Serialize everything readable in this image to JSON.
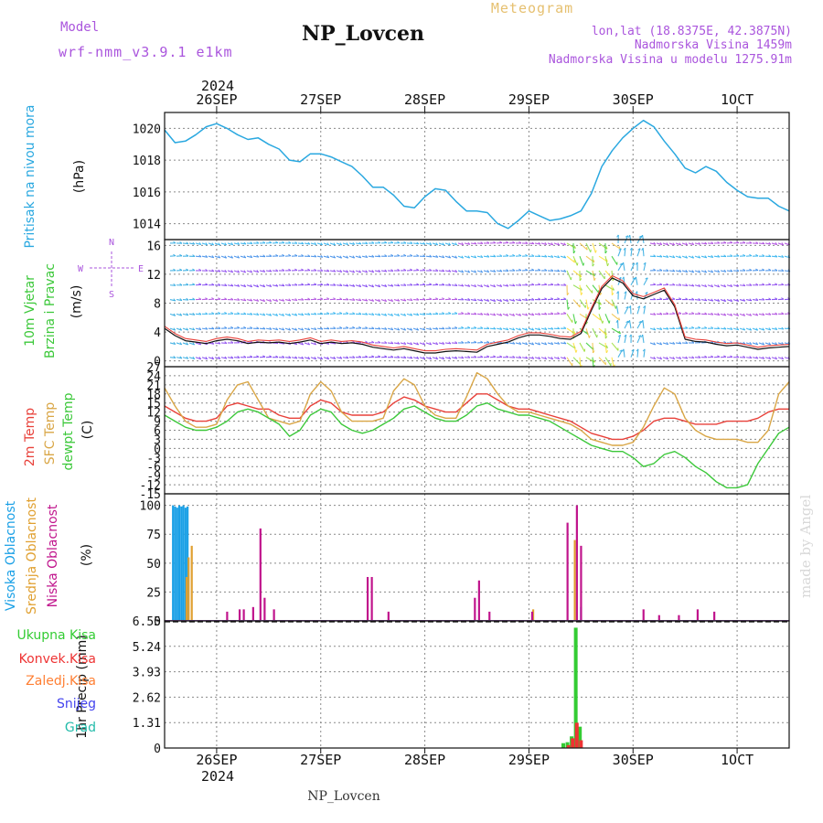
{
  "header": {
    "model_label": "Model",
    "model_name": "wrf-nmm_v3.9.1 e1km",
    "title": "NP_Lovcen",
    "chart_kind": "Meteogram",
    "coords": "lon,lat (18.8375E, 42.3875N)",
    "elevation": "Nadmorska Visina 1459m",
    "model_elevation": "Nadmorska Visina u modelu 1275.91m",
    "footer_title": "NP_Lovcen",
    "watermark": "made by Angel"
  },
  "colors": {
    "pressure": "#2aa8e0",
    "temp2m": "#e8413a",
    "sfc_temp": "#d9a646",
    "dewpt": "#3cc83a",
    "cloud_high": "#1aa0e6",
    "cloud_mid": "#e0a030",
    "cloud_low": "#c0148c",
    "purple": "#aa55dd",
    "precip_total": "#33cc33",
    "precip_conv": "#ee3333",
    "precip_frozen": "#ff7f33",
    "snow": "#4444ee",
    "hail": "#22bbaa"
  },
  "chart_data": [
    {
      "id": "pressure",
      "type": "line",
      "ylabel_lines": [
        "Pritisak na nivou mora"
      ],
      "unit": "(hPa)",
      "ylim": [
        1013,
        1021
      ],
      "yticks": [
        1014,
        1016,
        1018,
        1020
      ],
      "x_start": 25.5,
      "x_end": 31.5,
      "x": [
        25.5,
        25.6,
        25.7,
        25.8,
        25.9,
        26.0,
        26.1,
        26.2,
        26.3,
        26.4,
        26.5,
        26.6,
        26.7,
        26.8,
        26.9,
        27.0,
        27.1,
        27.2,
        27.3,
        27.4,
        27.5,
        27.6,
        27.7,
        27.8,
        27.9,
        28.0,
        28.1,
        28.2,
        28.3,
        28.4,
        28.5,
        28.6,
        28.7,
        28.8,
        28.9,
        29.0,
        29.1,
        29.2,
        29.3,
        29.4,
        29.5,
        29.6,
        29.7,
        29.8,
        29.9,
        30.0,
        30.1,
        30.2,
        30.3,
        30.4,
        30.5,
        30.6,
        30.7,
        30.8,
        30.9,
        31.0,
        31.1,
        31.2,
        31.3,
        31.4,
        31.5
      ],
      "values": [
        1019.9,
        1019.1,
        1019.2,
        1019.6,
        1020.1,
        1020.3,
        1020.0,
        1019.6,
        1019.3,
        1019.4,
        1019.0,
        1018.7,
        1018.0,
        1017.9,
        1018.4,
        1018.4,
        1018.2,
        1017.9,
        1017.6,
        1017.0,
        1016.3,
        1016.3,
        1015.8,
        1015.1,
        1015.0,
        1015.7,
        1016.2,
        1016.1,
        1015.4,
        1014.8,
        1014.8,
        1014.7,
        1014.0,
        1013.7,
        1014.2,
        1014.8,
        1014.5,
        1014.2,
        1014.3,
        1014.5,
        1014.8,
        1015.9,
        1017.6,
        1018.6,
        1019.4,
        1020.0,
        1020.5,
        1020.1,
        1019.2,
        1018.4,
        1017.5,
        1017.2,
        1017.6,
        1017.3,
        1016.6,
        1016.1,
        1015.7,
        1015.6,
        1015.6,
        1015.1,
        1014.8
      ],
      "series": [
        {
          "name": "",
          "color_key": "pressure"
        }
      ]
    },
    {
      "id": "wind",
      "type": "line",
      "ylabel_lines": [
        "10m Vjetar",
        "Brzina i Pravac"
      ],
      "unit": "(m/s)",
      "compass": {
        "n": "N",
        "s": "S",
        "e": "E",
        "w": "W"
      },
      "ylim": [
        -0.8,
        16.8
      ],
      "yticks": [
        0,
        4,
        8,
        12,
        16
      ],
      "ytick_labels": [
        "0",
        "4",
        "8",
        "12",
        "16"
      ],
      "x_start": 25.5,
      "x_end": 31.5,
      "x": [
        25.5,
        25.6,
        25.7,
        25.8,
        25.9,
        26.0,
        26.1,
        26.2,
        26.3,
        26.4,
        26.5,
        26.6,
        26.7,
        26.8,
        26.9,
        27.0,
        27.1,
        27.2,
        27.3,
        27.4,
        27.5,
        27.6,
        27.7,
        27.8,
        27.9,
        28.0,
        28.1,
        28.2,
        28.3,
        28.4,
        28.5,
        28.6,
        28.7,
        28.8,
        28.9,
        29.0,
        29.1,
        29.2,
        29.3,
        29.4,
        29.5,
        29.6,
        29.7,
        29.8,
        29.9,
        30.0,
        30.1,
        30.2,
        30.3,
        30.4,
        30.5,
        30.6,
        30.7,
        30.8,
        30.9,
        31.0,
        31.1,
        31.2,
        31.3,
        31.4,
        31.5
      ],
      "speed": [
        4.5,
        3.5,
        2.8,
        2.6,
        2.4,
        2.8,
        3.0,
        2.8,
        2.4,
        2.6,
        2.5,
        2.6,
        2.4,
        2.6,
        2.9,
        2.4,
        2.6,
        2.4,
        2.5,
        2.3,
        1.9,
        1.7,
        1.5,
        1.7,
        1.4,
        1.1,
        1.1,
        1.3,
        1.4,
        1.3,
        1.2,
        2.0,
        2.3,
        2.6,
        3.2,
        3.6,
        3.6,
        3.4,
        3.1,
        3.0,
        3.8,
        7.0,
        10.0,
        11.5,
        10.8,
        9.0,
        8.6,
        9.2,
        9.8,
        7.5,
        3.0,
        2.7,
        2.6,
        2.3,
        2.1,
        2.2,
        1.9,
        1.6,
        1.8,
        1.9,
        2.0
      ],
      "series": [
        {
          "name": "",
          "color_key": "temp2m"
        }
      ]
    },
    {
      "id": "temperature",
      "type": "line",
      "ylabel_lines": [
        "2m Temp",
        "SFC Temp",
        "dewpt Temp"
      ],
      "unit": "(C)",
      "ylim": [
        -15,
        27
      ],
      "yticks": [
        -15,
        -12,
        -9,
        -6,
        -3,
        0,
        3,
        6,
        9,
        12,
        15,
        18,
        21,
        24,
        27
      ],
      "x_start": 25.5,
      "x_end": 31.5,
      "x": [
        25.5,
        25.6,
        25.7,
        25.8,
        25.9,
        26.0,
        26.1,
        26.2,
        26.3,
        26.4,
        26.5,
        26.6,
        26.7,
        26.8,
        26.9,
        27.0,
        27.1,
        27.2,
        27.3,
        27.4,
        27.5,
        27.6,
        27.7,
        27.8,
        27.9,
        28.0,
        28.1,
        28.2,
        28.3,
        28.4,
        28.5,
        28.6,
        28.7,
        28.8,
        28.9,
        29.0,
        29.1,
        29.2,
        29.3,
        29.4,
        29.5,
        29.6,
        29.7,
        29.8,
        29.9,
        30.0,
        30.1,
        30.2,
        30.3,
        30.4,
        30.5,
        30.6,
        30.7,
        30.8,
        30.9,
        31.0,
        31.1,
        31.2,
        31.3,
        31.4,
        31.5
      ],
      "series": [
        {
          "name": "2m Temp",
          "color_key": "temp2m",
          "values": [
            14,
            12,
            10,
            9,
            9,
            10,
            14,
            15,
            14,
            13,
            13,
            11,
            10,
            10,
            14,
            16,
            15,
            12,
            11,
            11,
            11,
            12,
            15,
            17,
            16,
            14,
            13,
            12,
            12,
            15,
            18,
            18,
            16,
            14,
            13,
            13,
            12,
            11,
            10,
            9,
            7,
            5,
            4,
            3,
            3,
            4,
            6,
            9,
            10,
            10,
            9,
            8,
            8,
            8,
            9,
            9,
            9,
            10,
            12,
            13,
            13
          ]
        },
        {
          "name": "SFC Temp",
          "color_key": "sfc_temp",
          "values": [
            20,
            14,
            9,
            7,
            7,
            8,
            16,
            21,
            22,
            16,
            10,
            9,
            8,
            9,
            18,
            22,
            19,
            12,
            9,
            9,
            9,
            10,
            19,
            23,
            21,
            14,
            11,
            10,
            10,
            17,
            25,
            23,
            18,
            14,
            12,
            12,
            11,
            10,
            9,
            8,
            6,
            3,
            2,
            1,
            1,
            2,
            7,
            14,
            20,
            18,
            10,
            6,
            4,
            3,
            3,
            3,
            2,
            2,
            6,
            18,
            22
          ]
        },
        {
          "name": "dewpt Temp",
          "color_key": "dewpt",
          "values": [
            11,
            9,
            7,
            6,
            6,
            7,
            9,
            12,
            13,
            12,
            10,
            8,
            4,
            6,
            11,
            13,
            12,
            8,
            6,
            5,
            6,
            8,
            10,
            13,
            14,
            12,
            10,
            9,
            9,
            11,
            14,
            15,
            13,
            12,
            11,
            11,
            10,
            9,
            7,
            5,
            3,
            1,
            0,
            -1,
            -1,
            -3,
            -6,
            -5,
            -2,
            -1,
            -3,
            -6,
            -8,
            -11,
            -13,
            -13,
            -12,
            -5,
            0,
            5,
            7
          ]
        }
      ]
    },
    {
      "id": "cloud",
      "type": "bar",
      "ylabel_lines": [
        "Visoka Oblacnost",
        "Srednja Oblacnost",
        "Niska Oblacnost"
      ],
      "unit": "(%)",
      "ylim": [
        0,
        110
      ],
      "yticks": [
        0,
        25,
        50,
        75,
        100
      ],
      "x_start": 25.5,
      "x_end": 31.5,
      "series": [
        {
          "name": "Visoka Oblacnost",
          "color_key": "cloud_high",
          "points": [
            [
              25.58,
              100
            ],
            [
              25.6,
              99
            ],
            [
              25.62,
              98
            ],
            [
              25.64,
              100
            ],
            [
              25.66,
              99
            ],
            [
              25.68,
              100
            ],
            [
              25.7,
              98
            ],
            [
              25.72,
              99
            ],
            [
              29.5,
              12
            ]
          ]
        },
        {
          "name": "Srednja Oblacnost",
          "color_key": "cloud_mid",
          "points": [
            [
              25.71,
              38
            ],
            [
              25.73,
              55
            ],
            [
              25.76,
              65
            ],
            [
              29.04,
              10
            ],
            [
              29.44,
              70
            ]
          ]
        },
        {
          "name": "Niska Oblacnost",
          "color_key": "cloud_low",
          "points": [
            [
              26.1,
              8
            ],
            [
              26.22,
              10
            ],
            [
              26.26,
              10
            ],
            [
              26.35,
              12
            ],
            [
              26.42,
              80
            ],
            [
              26.46,
              20
            ],
            [
              26.55,
              10
            ],
            [
              27.45,
              38
            ],
            [
              27.49,
              38
            ],
            [
              27.65,
              8
            ],
            [
              28.48,
              20
            ],
            [
              28.52,
              35
            ],
            [
              28.62,
              8
            ],
            [
              29.03,
              8
            ],
            [
              29.37,
              85
            ],
            [
              29.46,
              100
            ],
            [
              29.5,
              65
            ],
            [
              30.1,
              10
            ],
            [
              30.25,
              5
            ],
            [
              30.44,
              5
            ],
            [
              30.62,
              10
            ],
            [
              30.78,
              8
            ]
          ]
        }
      ]
    },
    {
      "id": "precip",
      "type": "bar",
      "ylabel_lines": [
        "Ukupna Kisa",
        "Konvek.Kisa",
        "Zaledj.Kisa",
        "Snijeg",
        "Grad"
      ],
      "unit": "1hr Precip (mm)",
      "ylim": [
        0,
        6.55
      ],
      "yticks": [
        0,
        1.31,
        2.62,
        3.93,
        5.24,
        6.55
      ],
      "ytick_labels": [
        "0",
        "1.31",
        "2.62",
        "3.93",
        "5.24",
        "6.55"
      ],
      "x_start": 25.5,
      "x_end": 31.5,
      "series": [
        {
          "name": "Ukupna Kisa",
          "color_key": "precip_total",
          "points": [
            [
              29.33,
              0.25
            ],
            [
              29.37,
              0.3
            ],
            [
              29.41,
              0.6
            ],
            [
              29.45,
              6.2
            ],
            [
              29.49,
              1.1
            ]
          ]
        },
        {
          "name": "Konvek.Kisa",
          "color_key": "precip_conv",
          "points": [
            [
              29.38,
              0.15
            ],
            [
              29.42,
              0.5
            ],
            [
              29.46,
              1.3
            ],
            [
              29.5,
              0.4
            ]
          ]
        }
      ]
    }
  ],
  "time_axis": {
    "top_year": "2024",
    "bottom_year": "2024",
    "day_positions": [
      26,
      27,
      28,
      29,
      30,
      31
    ],
    "day_labels": [
      "26SEP",
      "27SEP",
      "28SEP",
      "29SEP",
      "30SEP",
      "1OCT"
    ]
  }
}
